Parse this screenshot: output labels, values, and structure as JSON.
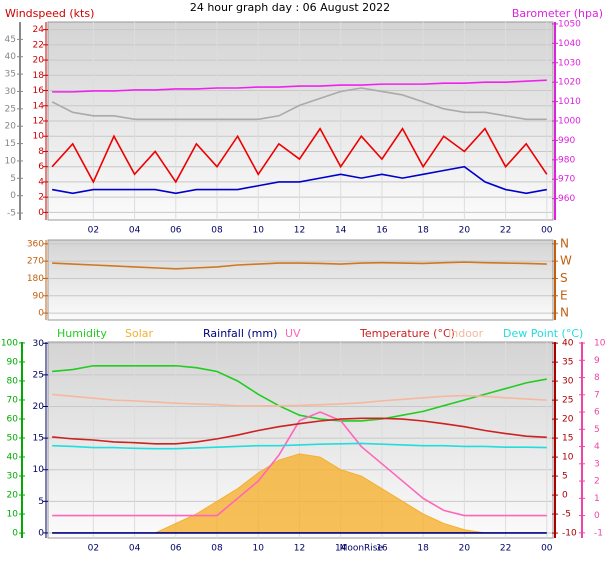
{
  "title": "24 hour graph day : 06 August 2022",
  "chart_data": [
    {
      "type": "line",
      "ylabel": "Windspeed (kts)",
      "y2label": "Barometer (hpa)",
      "grid": true,
      "x": [
        0,
        1,
        2,
        3,
        4,
        5,
        6,
        7,
        8,
        9,
        10,
        11,
        12,
        13,
        14,
        15,
        16,
        17,
        18,
        19,
        20,
        21,
        22,
        23,
        24
      ],
      "xlim": [
        -0.2,
        24.3
      ],
      "xticks": [
        {
          "value": 2,
          "label": "02"
        },
        {
          "value": 4,
          "label": "04"
        },
        {
          "value": 6,
          "label": "06"
        },
        {
          "value": 8,
          "label": "08"
        },
        10,
        12,
        14,
        16,
        18,
        20,
        22,
        {
          "value": 24,
          "label": "00"
        }
      ],
      "ylim": [
        -1,
        25
      ],
      "yticks": [
        0,
        2,
        4,
        6,
        8,
        10,
        12,
        14,
        16,
        18,
        20,
        22,
        24
      ],
      "y_color": "#cc0000",
      "y3lim": [
        -7,
        50
      ],
      "y3ticks": [
        -5,
        0,
        5,
        10,
        15,
        20,
        25,
        30,
        35,
        40,
        45
      ],
      "y3_color": "#888888",
      "y2lim": [
        949,
        1051
      ],
      "y2ticks": [
        960,
        970,
        980,
        990,
        1000,
        1010,
        1020,
        1030,
        1040,
        1050
      ],
      "y2_color": "#dd22dd",
      "series": [
        {
          "color": "#aaaaaa",
          "axis": "y3",
          "values": [
            27,
            24,
            23,
            23,
            22,
            22,
            22,
            22,
            22,
            22,
            22,
            23,
            26,
            28,
            30,
            31,
            30,
            29,
            27,
            25,
            24,
            24,
            23,
            22,
            22
          ]
        },
        {
          "color": "#ee0000",
          "values": [
            6,
            9,
            4,
            10,
            5,
            8,
            4,
            9,
            6,
            10,
            5,
            9,
            7,
            11,
            6,
            10,
            7,
            11,
            6,
            10,
            8,
            11,
            6,
            9,
            5
          ]
        },
        {
          "color": "#0000cc",
          "values": [
            3,
            2.5,
            3,
            3,
            3,
            3,
            2.5,
            3,
            3,
            3,
            3.5,
            4,
            4,
            4.5,
            5,
            4.5,
            5,
            4.5,
            5,
            5.5,
            6,
            4,
            3,
            2.5,
            3
          ]
        },
        {
          "color": "#ee22ee",
          "axis": "y2",
          "values": [
            1015,
            1015,
            1015.5,
            1015.5,
            1016,
            1016,
            1016.5,
            1016.5,
            1017,
            1017,
            1017.5,
            1017.5,
            1018,
            1018,
            1018.5,
            1018.5,
            1019,
            1019,
            1019,
            1019.5,
            1019.5,
            1020,
            1020,
            1020.5,
            1021
          ]
        }
      ]
    },
    {
      "type": "line",
      "grid": true,
      "x": [
        0,
        1,
        2,
        3,
        4,
        5,
        6,
        7,
        8,
        9,
        10,
        11,
        12,
        13,
        14,
        15,
        16,
        17,
        18,
        19,
        20,
        21,
        22,
        23,
        24
      ],
      "xlim": [
        -0.2,
        24.3
      ],
      "ylim": [
        -36,
        380
      ],
      "yticks": [
        0,
        90,
        180,
        270,
        360
      ],
      "y_color": "#c06010",
      "y2lim": [
        -36,
        380
      ],
      "y2ticks": [
        {
          "value": 0,
          "label": "N"
        },
        {
          "value": 90,
          "label": "E"
        },
        {
          "value": 180,
          "label": "S"
        },
        {
          "value": 270,
          "label": "W"
        },
        {
          "value": 360,
          "label": "N"
        }
      ],
      "y2_color": "#c06010",
      "series": [
        {
          "color": "#d07820",
          "values": [
            260,
            255,
            250,
            245,
            240,
            235,
            230,
            235,
            240,
            250,
            255,
            260,
            260,
            258,
            255,
            260,
            262,
            260,
            258,
            262,
            265,
            262,
            260,
            258,
            255
          ]
        }
      ]
    },
    {
      "type": "line",
      "grid": true,
      "x": [
        0,
        1,
        2,
        3,
        4,
        5,
        6,
        7,
        8,
        9,
        10,
        11,
        12,
        13,
        14,
        15,
        16,
        17,
        18,
        19,
        20,
        21,
        22,
        23,
        24
      ],
      "xlim": [
        -0.2,
        24.3
      ],
      "xticks": [
        {
          "value": 2,
          "label": "02"
        },
        {
          "value": 4,
          "label": "04"
        },
        {
          "value": 6,
          "label": "06"
        },
        {
          "value": 8,
          "label": "08"
        },
        10,
        12,
        14,
        16,
        18,
        20,
        22,
        {
          "value": 24,
          "label": "00"
        }
      ],
      "ylim": [
        -0.8,
        30.2
      ],
      "yticks": [
        0,
        5,
        10,
        15,
        20,
        25,
        30
      ],
      "y_color": "#000066",
      "y3lim": [
        -2.6,
        100.5
      ],
      "y3ticks": [
        0,
        10,
        20,
        30,
        40,
        50,
        60,
        70,
        80,
        90,
        100
      ],
      "y3_color": "#00aa00",
      "y2lim": [
        -11.3,
        40.3
      ],
      "y2ticks": [
        -10,
        -5,
        0,
        5,
        10,
        15,
        20,
        25,
        30,
        35,
        40
      ],
      "y2_color": "#aa0000",
      "y4lim": [
        -1.3,
        10.06
      ],
      "y4ticks": [
        -1,
        0,
        1,
        2,
        3,
        4,
        5,
        6,
        7,
        8,
        9,
        10
      ],
      "y4_color": "#ee44aa",
      "annotations": [
        {
          "text": "MoonRise",
          "x": 15
        }
      ],
      "series": [
        {
          "name": "Humidity",
          "color": "#22cc22",
          "axis": "y3",
          "values": [
            85,
            86,
            88,
            88,
            88,
            88,
            88,
            87,
            85,
            80,
            73,
            67,
            62,
            60,
            59,
            59,
            60,
            62,
            64,
            67,
            70,
            73,
            76,
            79,
            81
          ]
        },
        {
          "name": "Solar",
          "color": "#f5b030",
          "fill": true,
          "values": [
            0,
            0,
            0,
            0,
            0,
            0,
            1.5,
            3,
            5,
            7,
            9.5,
            11.5,
            12.5,
            12,
            10,
            9,
            7,
            5,
            3,
            1.5,
            0.5,
            0,
            0,
            0,
            0
          ]
        },
        {
          "name": "Rainfall (mm)",
          "color": "#000080",
          "values": [
            0,
            0,
            0,
            0,
            0,
            0,
            0,
            0,
            0,
            0,
            0,
            0,
            0,
            0,
            0,
            0,
            0,
            0,
            0,
            0,
            0,
            0,
            0,
            0,
            0
          ]
        },
        {
          "name": "UV",
          "color": "#ff66bb",
          "axis": "y4",
          "values": [
            0,
            0,
            0,
            0,
            0,
            0,
            0,
            0,
            0,
            1,
            2,
            3.5,
            5.5,
            6,
            5.5,
            4,
            3,
            2,
            1,
            0.3,
            0,
            0,
            0,
            0,
            0
          ]
        },
        {
          "name": "Temperature (°C)",
          "color": "#cc2222",
          "axis": "y2",
          "values": [
            15.3,
            14.8,
            14.5,
            14,
            13.8,
            13.5,
            13.5,
            14,
            14.8,
            15.8,
            17,
            18,
            18.8,
            19.5,
            20,
            20.2,
            20.2,
            20,
            19.5,
            18.8,
            18,
            17,
            16.2,
            15.5,
            15.2
          ]
        },
        {
          "name": "Indoor",
          "color": "#f5b8a0",
          "axis": "y2",
          "values": [
            26.5,
            26,
            25.5,
            25,
            24.8,
            24.5,
            24.2,
            24,
            23.8,
            23.5,
            23.5,
            23.5,
            23.6,
            23.8,
            24,
            24.3,
            24.8,
            25.2,
            25.6,
            26,
            26.2,
            26,
            25.6,
            25.3,
            25
          ]
        },
        {
          "name": "Dew Point (°C)",
          "color": "#22dddd",
          "axis": "y2",
          "values": [
            13,
            12.8,
            12.5,
            12.5,
            12.3,
            12.2,
            12.2,
            12.4,
            12.6,
            12.8,
            13,
            13,
            13.2,
            13.4,
            13.5,
            13.6,
            13.4,
            13.2,
            13,
            13,
            12.8,
            12.8,
            12.6,
            12.6,
            12.5
          ]
        }
      ]
    }
  ]
}
